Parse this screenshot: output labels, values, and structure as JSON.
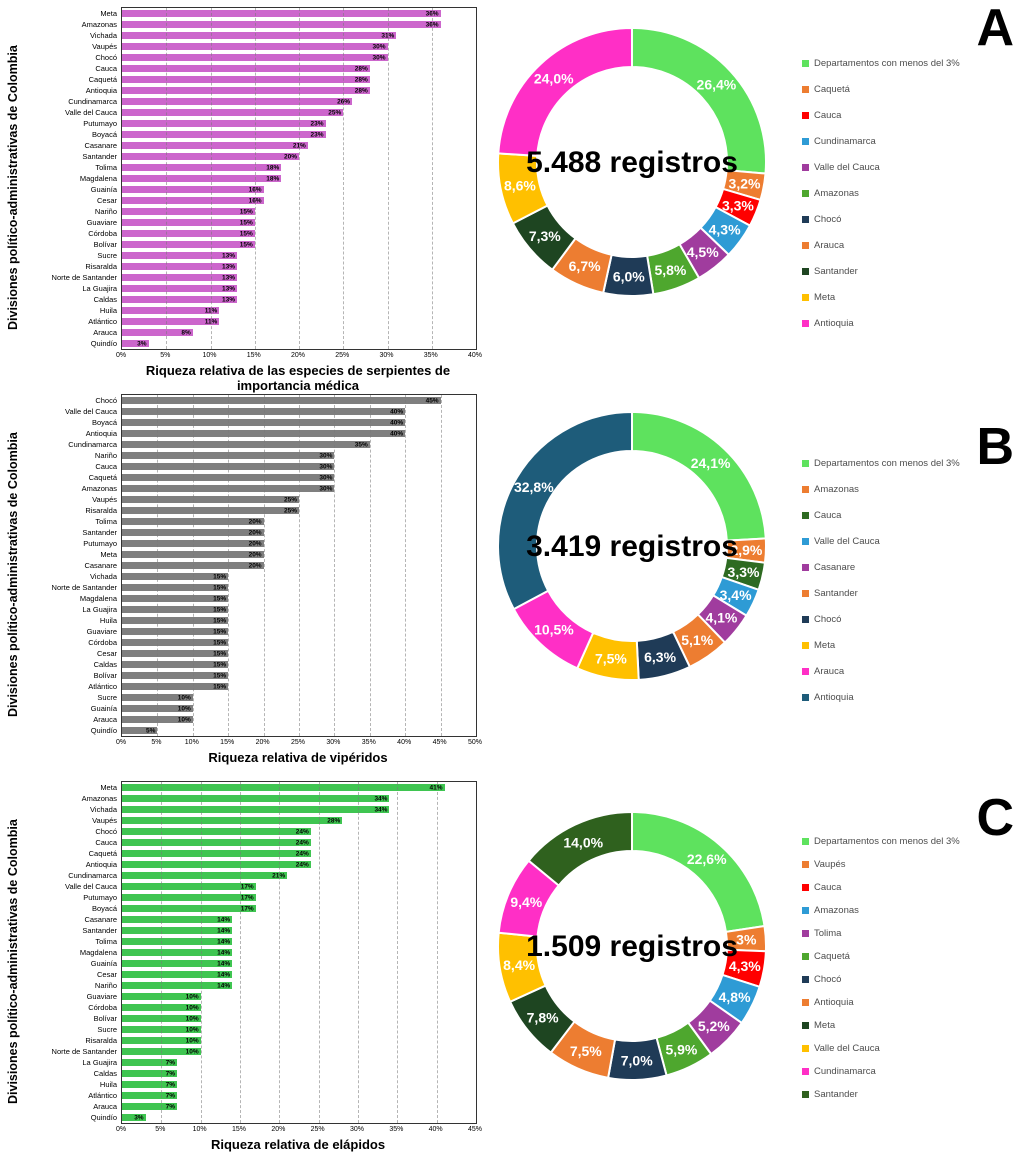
{
  "chart_data": [
    {
      "panel": "A",
      "bar": {
        "type": "bar",
        "orientation": "horizontal",
        "ylabel": "Divisiones político-administrativas de Colombia",
        "xlabel": "Riqueza relativa de las especies de serpientes de importancia médica",
        "bar_color": "#CC66CC",
        "axis_max": 40,
        "tick_step": 5,
        "grid": true,
        "categories": [
          "Meta",
          "Amazonas",
          "Vichada",
          "Vaupés",
          "Chocó",
          "Cauca",
          "Caquetá",
          "Antioquia",
          "Cundinamarca",
          "Valle del Cauca",
          "Putumayo",
          "Boyacá",
          "Casanare",
          "Santander",
          "Tolima",
          "Magdalena",
          "Guainía",
          "Cesar",
          "Nariño",
          "Guaviare",
          "Córdoba",
          "Bolívar",
          "Sucre",
          "Risaralda",
          "Norte de Santander",
          "La Guajira",
          "Caldas",
          "Huila",
          "Atlántico",
          "Arauca",
          "Quindío"
        ],
        "values": [
          36,
          36,
          31,
          30,
          30,
          28,
          28,
          28,
          26,
          25,
          23,
          23,
          21,
          20,
          18,
          18,
          16,
          16,
          15,
          15,
          15,
          15,
          13,
          13,
          13,
          13,
          13,
          11,
          11,
          8,
          3
        ]
      },
      "donut": {
        "type": "pie",
        "center_label": "5.488 registros",
        "slices": [
          {
            "label": "Departamentos con menos del 3%",
            "value": 26.4,
            "display": "26,4%",
            "color": "#5EE25E"
          },
          {
            "label": "Caquetá",
            "value": 3.2,
            "display": "3,2%",
            "color": "#ED7D31"
          },
          {
            "label": "Cauca",
            "value": 3.3,
            "display": "3,3%",
            "color": "#FF0000"
          },
          {
            "label": "Cundinamarca",
            "value": 4.3,
            "display": "4,3%",
            "color": "#2E9BD5"
          },
          {
            "label": "Valle del Cauca",
            "value": 4.5,
            "display": "4,5%",
            "color": "#A03C9E"
          },
          {
            "label": "Amazonas",
            "value": 5.8,
            "display": "5,8%",
            "color": "#4EA72E"
          },
          {
            "label": "Chocó",
            "value": 6.0,
            "display": "6,0%",
            "color": "#1F3B57"
          },
          {
            "label": "Arauca",
            "value": 6.7,
            "display": "6,7%",
            "color": "#ED7D31"
          },
          {
            "label": "Santander",
            "value": 7.3,
            "display": "7,3%",
            "color": "#1E4521"
          },
          {
            "label": "Meta",
            "value": 8.6,
            "display": "8,6%",
            "color": "#FFC000"
          },
          {
            "label": "Antioquia",
            "value": 24.0,
            "display": "24,0%",
            "color": "#FF2FC6"
          }
        ]
      }
    },
    {
      "panel": "B",
      "bar": {
        "type": "bar",
        "orientation": "horizontal",
        "ylabel": "Divisiones político-administrativas de Colombia",
        "xlabel": "Riqueza relativa de vipéridos",
        "bar_color": "#7F7F7F",
        "axis_max": 50,
        "tick_step": 5,
        "grid": true,
        "categories": [
          "Chocó",
          "Valle del Cauca",
          "Boyacá",
          "Antioquia",
          "Cundinamarca",
          "Nariño",
          "Cauca",
          "Caquetá",
          "Amazonas",
          "Vaupés",
          "Risaralda",
          "Tolima",
          "Santander",
          "Putumayo",
          "Meta",
          "Casanare",
          "Vichada",
          "Norte de Santander",
          "Magdalena",
          "La Guajira",
          "Huila",
          "Guaviare",
          "Córdoba",
          "Cesar",
          "Caldas",
          "Bolívar",
          "Atlántico",
          "Sucre",
          "Guainía",
          "Arauca",
          "Quindío"
        ],
        "values": [
          45,
          40,
          40,
          40,
          35,
          30,
          30,
          30,
          30,
          25,
          25,
          20,
          20,
          20,
          20,
          20,
          15,
          15,
          15,
          15,
          15,
          15,
          15,
          15,
          15,
          15,
          15,
          10,
          10,
          10,
          5
        ]
      },
      "donut": {
        "type": "pie",
        "center_label": "3.419 registros",
        "slices": [
          {
            "label": "Departamentos con menos del 3%",
            "value": 24.1,
            "display": "24,1%",
            "color": "#5EE25E"
          },
          {
            "label": "Amazonas",
            "value": 2.9,
            "display": "2,9%",
            "color": "#ED7D31"
          },
          {
            "label": "Cauca",
            "value": 3.3,
            "display": "3,3%",
            "color": "#2E6B22"
          },
          {
            "label": "Valle del Cauca",
            "value": 3.4,
            "display": "3,4%",
            "color": "#2E9BD5"
          },
          {
            "label": "Casanare",
            "value": 4.1,
            "display": "4,1%",
            "color": "#A03C9E"
          },
          {
            "label": "Santander",
            "value": 5.1,
            "display": "5,1%",
            "color": "#ED7D31"
          },
          {
            "label": "Chocó",
            "value": 6.3,
            "display": "6,3%",
            "color": "#1F3B57"
          },
          {
            "label": "Meta",
            "value": 7.5,
            "display": "7,5%",
            "color": "#FFC000"
          },
          {
            "label": "Arauca",
            "value": 10.5,
            "display": "10,5%",
            "color": "#FF2FC6"
          },
          {
            "label": "Antioquia",
            "value": 32.8,
            "display": "32,8%",
            "color": "#1E5C7A"
          }
        ]
      }
    },
    {
      "panel": "C",
      "bar": {
        "type": "bar",
        "orientation": "horizontal",
        "ylabel": "Divisiones político-administrativas de Colombia",
        "xlabel": "Riqueza relativa de elápidos",
        "bar_color": "#3FC551",
        "axis_max": 45,
        "tick_step": 5,
        "grid": true,
        "categories": [
          "Meta",
          "Amazonas",
          "Vichada",
          "Vaupés",
          "Chocó",
          "Cauca",
          "Caquetá",
          "Antioquia",
          "Cundinamarca",
          "Valle del Cauca",
          "Putumayo",
          "Boyacá",
          "Casanare",
          "Santander",
          "Tolima",
          "Magdalena",
          "Guainía",
          "Cesar",
          "Nariño",
          "Guaviare",
          "Córdoba",
          "Bolívar",
          "Sucre",
          "Risaralda",
          "Norte de Santander",
          "La Guajira",
          "Caldas",
          "Huila",
          "Atlántico",
          "Arauca",
          "Quindío"
        ],
        "values": [
          41,
          34,
          34,
          28,
          24,
          24,
          24,
          24,
          21,
          17,
          17,
          17,
          14,
          14,
          14,
          14,
          14,
          14,
          14,
          10,
          10,
          10,
          10,
          10,
          10,
          7,
          7,
          7,
          7,
          7,
          3
        ]
      },
      "donut": {
        "type": "pie",
        "center_label": "1.509 registros",
        "slices": [
          {
            "label": "Departamentos con menos del 3%",
            "value": 22.6,
            "display": "22,6%",
            "color": "#5EE25E"
          },
          {
            "label": "Vaupés",
            "value": 3.0,
            "display": "3%",
            "color": "#ED7D31"
          },
          {
            "label": "Cauca",
            "value": 4.3,
            "display": "4,3%",
            "color": "#FF0000"
          },
          {
            "label": "Amazonas",
            "value": 4.8,
            "display": "4,8%",
            "color": "#2E9BD5"
          },
          {
            "label": "Tolima",
            "value": 5.2,
            "display": "5,2%",
            "color": "#A03C9E"
          },
          {
            "label": "Caquetá",
            "value": 5.9,
            "display": "5,9%",
            "color": "#4EA72E"
          },
          {
            "label": "Chocó",
            "value": 7.0,
            "display": "7,0%",
            "color": "#1F3B57"
          },
          {
            "label": "Antioquia",
            "value": 7.5,
            "display": "7,5%",
            "color": "#ED7D31"
          },
          {
            "label": "Meta",
            "value": 7.8,
            "display": "7,8%",
            "color": "#1E4521"
          },
          {
            "label": "Valle del Cauca",
            "value": 8.4,
            "display": "8,4%",
            "color": "#FFC000"
          },
          {
            "label": "Cundinamarca",
            "value": 9.4,
            "display": "9,4%",
            "color": "#FF2FC6"
          },
          {
            "label": "Santander",
            "value": 14.0,
            "display": "14,0%",
            "color": "#2F611E"
          }
        ]
      }
    }
  ]
}
